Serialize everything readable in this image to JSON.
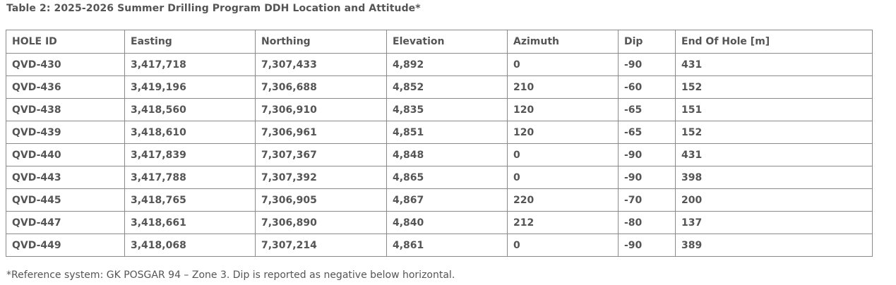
{
  "caption": "Table 2: 2025-2026 Summer Drilling Program DDH Location and Attitude*",
  "table": {
    "headers": [
      "HOLE ID",
      "Easting",
      "Northing",
      "Elevation",
      "Azimuth",
      "Dip",
      "End Of Hole [m]"
    ],
    "rows": [
      [
        "QVD-430",
        "3,417,718",
        "7,307,433",
        "4,892",
        "0",
        "-90",
        "431"
      ],
      [
        "QVD-436",
        "3,419,196",
        "7,306,688",
        "4,852",
        "210",
        "-60",
        "152"
      ],
      [
        "QVD-438",
        "3,418,560",
        "7,306,910",
        "4,835",
        "120",
        "-65",
        "151"
      ],
      [
        "QVD-439",
        "3,418,610",
        "7,306,961",
        "4,851",
        "120",
        "-65",
        "152"
      ],
      [
        "QVD-440",
        "3,417,839",
        "7,307,367",
        "4,848",
        "0",
        "-90",
        "431"
      ],
      [
        "QVD-443",
        "3,417,788",
        "7,307,392",
        "4,865",
        "0",
        "-90",
        "398"
      ],
      [
        "QVD-445",
        "3,418,765",
        "7,306,905",
        "4,867",
        "220",
        "-70",
        "200"
      ],
      [
        "QVD-447",
        "3,418,661",
        "7,306,890",
        "4,840",
        "212",
        "-80",
        "137"
      ],
      [
        "QVD-449",
        "3,418,068",
        "7,307,214",
        "4,861",
        "0",
        "-90",
        "389"
      ]
    ]
  },
  "footnote": "*Reference system: GK POSGAR 94 – Zone 3. Dip is reported as negative below horizontal."
}
